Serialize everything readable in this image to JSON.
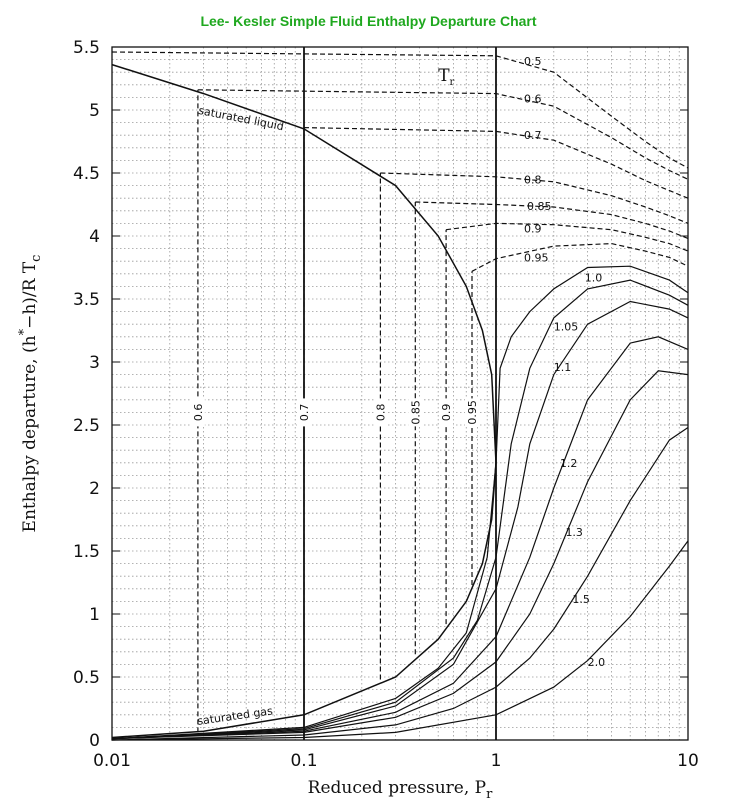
{
  "title": "Lee- Kesler Simple Fluid Enthalpy Departure Chart",
  "colors": {
    "title": "#1fa81f",
    "ink": "#111111",
    "grid": "#9a9a9a"
  },
  "chart_data": {
    "type": "line",
    "title": "Lee- Kesler Simple Fluid Enthalpy Departure Chart",
    "xlabel": "Reduced pressure, P",
    "xlabel_subscript": "r",
    "ylabel": "Enthalpy departure, (h",
    "ylabel_sup": "*",
    "ylabel_mid": "−h)/R T",
    "ylabel_subscript": "c",
    "xscale": "log",
    "xlim": [
      0.01,
      10
    ],
    "ylim": [
      0,
      5.5
    ],
    "grid": true,
    "x_ticks": [
      0.01,
      0.1,
      1,
      10
    ],
    "x_tick_labels": [
      "0.01",
      "0.1",
      "1",
      "10"
    ],
    "y_ticks": [
      0,
      0.5,
      1,
      1.5,
      2,
      2.5,
      3,
      3.5,
      4,
      4.5,
      5,
      5.5
    ],
    "y_tick_labels": [
      "0",
      "0.5",
      "1",
      "1.5",
      "2",
      "2.5",
      "3",
      "3.5",
      "4",
      "4.5",
      "5",
      "5.5"
    ],
    "parameter_label": "T",
    "parameter_label_subscript": "r",
    "annotations": {
      "saturated_liquid": "saturated liquid",
      "saturated_gas": "saturated gas"
    },
    "saturated_liquid": {
      "x": [
        0.01,
        0.03,
        0.1,
        0.3,
        0.5,
        0.7,
        0.85,
        0.95,
        1.0
      ],
      "y": [
        5.36,
        5.13,
        4.85,
        4.4,
        4.0,
        3.6,
        3.25,
        2.9,
        2.2
      ]
    },
    "saturated_gas": {
      "x": [
        0.01,
        0.03,
        0.1,
        0.3,
        0.5,
        0.7,
        0.85,
        0.95,
        1.0
      ],
      "y": [
        0.02,
        0.07,
        0.2,
        0.5,
        0.8,
        1.1,
        1.4,
        1.75,
        2.2
      ]
    },
    "series": [
      {
        "name": "0.5",
        "style": "dashed",
        "x": [
          0.01,
          1,
          2,
          4,
          6,
          8,
          10
        ],
        "y": [
          5.46,
          5.43,
          5.3,
          4.95,
          4.75,
          4.62,
          4.54
        ]
      },
      {
        "name": "0.6",
        "style": "dashed",
        "x": [
          0.028,
          1,
          2,
          4,
          6,
          8,
          10
        ],
        "y": [
          5.16,
          5.13,
          5.03,
          4.78,
          4.62,
          4.52,
          4.45
        ]
      },
      {
        "name": "0.7",
        "style": "dashed",
        "x": [
          0.1,
          1,
          2,
          4,
          6,
          8,
          10
        ],
        "y": [
          4.86,
          4.83,
          4.76,
          4.57,
          4.44,
          4.36,
          4.3
        ]
      },
      {
        "name": "0.8",
        "style": "dashed",
        "x": [
          0.25,
          1,
          2,
          4,
          6,
          8,
          10
        ],
        "y": [
          4.5,
          4.47,
          4.43,
          4.32,
          4.23,
          4.16,
          4.1
        ]
      },
      {
        "name": "0.85",
        "style": "dashed",
        "x": [
          0.38,
          1,
          2,
          4,
          6,
          8,
          10
        ],
        "y": [
          4.27,
          4.25,
          4.23,
          4.17,
          4.1,
          4.04,
          3.98
        ]
      },
      {
        "name": "0.9",
        "style": "dashed",
        "x": [
          0.55,
          1,
          2,
          4,
          6,
          8,
          10
        ],
        "y": [
          4.05,
          4.1,
          4.09,
          4.05,
          3.99,
          3.94,
          3.88
        ]
      },
      {
        "name": "0.95",
        "style": "dashed",
        "x": [
          0.75,
          1,
          2,
          4,
          6,
          8,
          10
        ],
        "y": [
          3.72,
          3.82,
          3.92,
          3.94,
          3.88,
          3.83,
          3.76
        ]
      },
      {
        "name": "0.6",
        "style": "dashed",
        "x": [
          0.028,
          0.028
        ],
        "y": [
          0.06,
          5.16
        ]
      },
      {
        "name": "0.7",
        "style": "dashed",
        "x": [
          0.1,
          0.1
        ],
        "y": [
          0.2,
          4.86
        ]
      },
      {
        "name": "0.8",
        "style": "dashed",
        "x": [
          0.25,
          0.25
        ],
        "y": [
          0.48,
          4.5
        ]
      },
      {
        "name": "0.85",
        "style": "dashed",
        "x": [
          0.38,
          0.38
        ],
        "y": [
          0.68,
          4.27
        ]
      },
      {
        "name": "0.9",
        "style": "dashed",
        "x": [
          0.55,
          0.55
        ],
        "y": [
          0.92,
          4.05
        ]
      },
      {
        "name": "0.95",
        "style": "dashed",
        "x": [
          0.75,
          0.75
        ],
        "y": [
          1.23,
          3.72
        ]
      },
      {
        "name": "1.0",
        "style": "solid",
        "x": [
          0.01,
          0.1,
          0.3,
          0.5,
          0.7,
          0.9,
          1.0,
          1.05,
          1.2,
          1.5,
          2,
          3,
          5,
          8,
          10
        ],
        "y": [
          0.01,
          0.1,
          0.33,
          0.57,
          0.85,
          1.45,
          2.2,
          2.95,
          3.2,
          3.4,
          3.58,
          3.75,
          3.76,
          3.65,
          3.55
        ]
      },
      {
        "name": "1.05",
        "style": "solid",
        "x": [
          0.01,
          0.1,
          0.3,
          0.6,
          0.8,
          1.0,
          1.2,
          1.5,
          2,
          3,
          5,
          8,
          10
        ],
        "y": [
          0.01,
          0.09,
          0.3,
          0.65,
          0.95,
          1.45,
          2.35,
          2.95,
          3.35,
          3.58,
          3.65,
          3.53,
          3.45
        ]
      },
      {
        "name": "1.1",
        "style": "solid",
        "x": [
          0.01,
          0.1,
          0.3,
          0.6,
          1.0,
          1.3,
          1.5,
          2,
          3,
          5,
          8,
          10
        ],
        "y": [
          0.01,
          0.08,
          0.27,
          0.6,
          1.2,
          1.85,
          2.35,
          2.9,
          3.3,
          3.48,
          3.42,
          3.35
        ]
      },
      {
        "name": "1.2",
        "style": "solid",
        "x": [
          0.01,
          0.1,
          0.3,
          0.6,
          1.0,
          1.5,
          2,
          3,
          5,
          7,
          10
        ],
        "y": [
          0.01,
          0.07,
          0.22,
          0.45,
          0.82,
          1.45,
          2.0,
          2.7,
          3.15,
          3.2,
          3.1
        ]
      },
      {
        "name": "1.3",
        "style": "solid",
        "x": [
          0.01,
          0.1,
          0.3,
          0.6,
          1.0,
          1.5,
          2,
          3,
          5,
          7,
          10
        ],
        "y": [
          0.01,
          0.06,
          0.18,
          0.37,
          0.62,
          1.0,
          1.4,
          2.05,
          2.7,
          2.93,
          2.9
        ]
      },
      {
        "name": "1.5",
        "style": "solid",
        "x": [
          0.01,
          0.1,
          0.3,
          0.6,
          1.0,
          1.5,
          2,
          3,
          5,
          8,
          10
        ],
        "y": [
          0.0,
          0.04,
          0.12,
          0.25,
          0.42,
          0.65,
          0.88,
          1.3,
          1.9,
          2.38,
          2.48
        ]
      },
      {
        "name": "2.0",
        "style": "solid",
        "x": [
          0.01,
          0.1,
          0.3,
          1.0,
          2,
          3,
          5,
          8,
          10
        ],
        "y": [
          0.0,
          0.02,
          0.06,
          0.2,
          0.42,
          0.63,
          0.98,
          1.38,
          1.58
        ]
      },
      {
        "name": "",
        "style": "solid",
        "x": [
          0.1,
          0.1
        ],
        "y": [
          0,
          5.5
        ]
      },
      {
        "name": "",
        "style": "solid",
        "x": [
          1,
          1
        ],
        "y": [
          0,
          5.5
        ]
      }
    ],
    "labels": [
      {
        "text": "0.5",
        "x": 1.4,
        "y": 5.39
      },
      {
        "text": "0.6",
        "x": 1.4,
        "y": 5.09
      },
      {
        "text": "0.7",
        "x": 1.4,
        "y": 4.8
      },
      {
        "text": "0.8",
        "x": 1.4,
        "y": 4.45
      },
      {
        "text": "0.85",
        "x": 1.45,
        "y": 4.24
      },
      {
        "text": "0.9",
        "x": 1.4,
        "y": 4.06
      },
      {
        "text": "0.95",
        "x": 1.4,
        "y": 3.83
      },
      {
        "text": "1.0",
        "x": 2.9,
        "y": 3.67
      },
      {
        "text": "1.05",
        "x": 2.0,
        "y": 3.28
      },
      {
        "text": "1.1",
        "x": 2.0,
        "y": 2.96
      },
      {
        "text": "1.2",
        "x": 2.15,
        "y": 2.2
      },
      {
        "text": "1.3",
        "x": 2.3,
        "y": 1.65
      },
      {
        "text": "1.5",
        "x": 2.5,
        "y": 1.12
      },
      {
        "text": "2.0",
        "x": 3.0,
        "y": 0.62
      }
    ],
    "vertical_labels": [
      {
        "text": "0.6",
        "x": 0.028,
        "y": 2.6
      },
      {
        "text": "0.7",
        "x": 0.1,
        "y": 2.6
      },
      {
        "text": "0.8",
        "x": 0.25,
        "y": 2.6
      },
      {
        "text": "0.85",
        "x": 0.38,
        "y": 2.6
      },
      {
        "text": "0.9",
        "x": 0.55,
        "y": 2.6
      },
      {
        "text": "0.95",
        "x": 0.75,
        "y": 2.6
      }
    ]
  }
}
